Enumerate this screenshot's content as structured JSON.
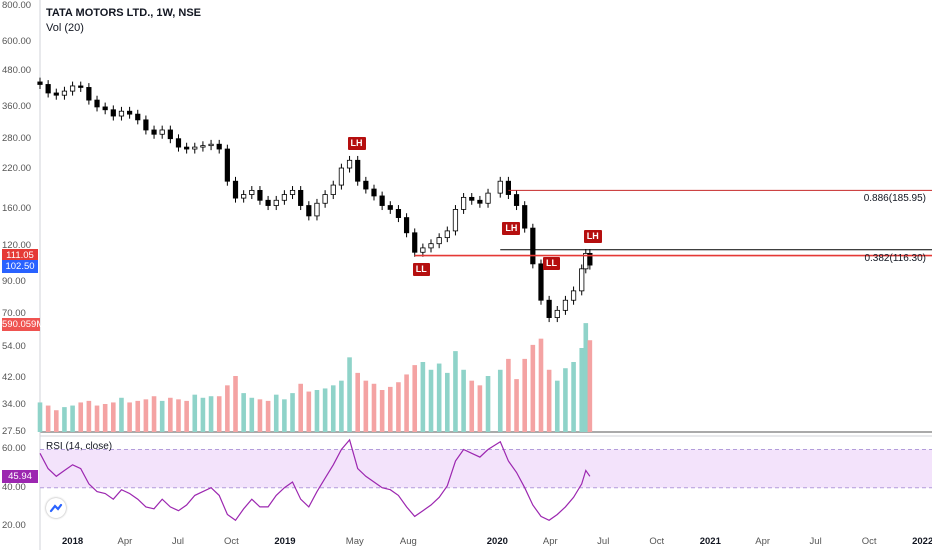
{
  "header": {
    "symbol_title": "TATA MOTORS LTD., 1W, NSE",
    "volume_indicator": "Vol (20)"
  },
  "rsi_panel": {
    "label": "RSI (14, close)",
    "value_badge": "45.94",
    "ticks": [
      "60.00",
      "40.00",
      "20.00"
    ]
  },
  "price_badges": {
    "bid": "111.05",
    "last": "102.50",
    "volume": "590.059M"
  },
  "colors": {
    "up": "#26a69a",
    "down": "#000000",
    "vol_up": "#8fd3c9",
    "vol_down": "#f4a3a3",
    "rsi_line": "#9c27b0",
    "rsi_band": "#f3e3fb",
    "level_red": "#c62828",
    "marker": "#b50f0f"
  },
  "markers": [
    {
      "label": "LH",
      "date": "2019-04-22"
    },
    {
      "label": "LL",
      "date": "2019-08-12"
    },
    {
      "label": "LH",
      "date": "2020-01-13"
    },
    {
      "label": "LL",
      "date": "2020-03-23"
    },
    {
      "label": "LH",
      "date": "2020-06-01"
    }
  ],
  "fib_levels": [
    {
      "label": "0.886(185.95)",
      "value": 185.95
    },
    {
      "label": "0.382(116.30)",
      "value": 116.3
    }
  ],
  "chart_data": {
    "type": "candlestick",
    "title": "TATA MOTORS LTD., 1W, NSE",
    "price_scale": "log",
    "price_ticks": [
      "800.00",
      "600.00",
      "480.00",
      "360.00",
      "280.00",
      "220.00",
      "160.00",
      "120.00",
      "90.00",
      "70.00",
      "54.00",
      "42.00",
      "34.00",
      "27.50"
    ],
    "x_ticks": [
      "2018",
      "Apr",
      "Jul",
      "Oct",
      "2019",
      "May",
      "Aug",
      "2020",
      "Apr",
      "Jul",
      "Oct",
      "2021",
      "Apr",
      "Jul",
      "Oct",
      "2022"
    ],
    "x_ticks_bold": [
      "2018",
      "2019",
      "2020",
      "2021",
      "2022"
    ],
    "x_range": [
      "2017-11-06",
      "2022-01-17"
    ],
    "y_range": [
      27.5,
      800
    ],
    "weekly_close": [
      [
        "2017-11-06",
        430
      ],
      [
        "2017-11-20",
        402
      ],
      [
        "2017-12-04",
        395
      ],
      [
        "2017-12-18",
        408
      ],
      [
        "2018-01-01",
        425
      ],
      [
        "2018-01-15",
        420
      ],
      [
        "2018-01-29",
        380
      ],
      [
        "2018-02-12",
        360
      ],
      [
        "2018-02-26",
        352
      ],
      [
        "2018-03-12",
        335
      ],
      [
        "2018-03-26",
        348
      ],
      [
        "2018-04-09",
        340
      ],
      [
        "2018-04-23",
        325
      ],
      [
        "2018-05-07",
        300
      ],
      [
        "2018-05-21",
        290
      ],
      [
        "2018-06-04",
        300
      ],
      [
        "2018-06-18",
        280
      ],
      [
        "2018-07-02",
        262
      ],
      [
        "2018-07-16",
        258
      ],
      [
        "2018-07-30",
        262
      ],
      [
        "2018-08-13",
        265
      ],
      [
        "2018-08-27",
        268
      ],
      [
        "2018-09-10",
        258
      ],
      [
        "2018-09-24",
        200
      ],
      [
        "2018-10-08",
        175
      ],
      [
        "2018-10-22",
        180
      ],
      [
        "2018-11-05",
        186
      ],
      [
        "2018-11-19",
        172
      ],
      [
        "2018-12-03",
        165
      ],
      [
        "2018-12-17",
        172
      ],
      [
        "2018-12-31",
        180
      ],
      [
        "2019-01-14",
        186
      ],
      [
        "2019-01-28",
        165
      ],
      [
        "2019-02-11",
        152
      ],
      [
        "2019-02-25",
        168
      ],
      [
        "2019-03-11",
        180
      ],
      [
        "2019-03-25",
        194
      ],
      [
        "2019-04-08",
        222
      ],
      [
        "2019-04-22",
        236
      ],
      [
        "2019-05-06",
        200
      ],
      [
        "2019-05-20",
        188
      ],
      [
        "2019-06-03",
        178
      ],
      [
        "2019-06-17",
        165
      ],
      [
        "2019-07-01",
        160
      ],
      [
        "2019-07-15",
        150
      ],
      [
        "2019-07-29",
        133
      ],
      [
        "2019-08-12",
        114
      ],
      [
        "2019-08-26",
        118
      ],
      [
        "2019-09-09",
        122
      ],
      [
        "2019-09-23",
        128
      ],
      [
        "2019-10-07",
        135
      ],
      [
        "2019-10-21",
        160
      ],
      [
        "2019-11-04",
        176
      ],
      [
        "2019-11-18",
        172
      ],
      [
        "2019-12-02",
        168
      ],
      [
        "2019-12-16",
        182
      ],
      [
        "2020-01-06",
        200
      ],
      [
        "2020-01-20",
        180
      ],
      [
        "2020-02-03",
        165
      ],
      [
        "2020-02-17",
        138
      ],
      [
        "2020-03-02",
        104
      ],
      [
        "2020-03-16",
        78
      ],
      [
        "2020-03-30",
        68
      ],
      [
        "2020-04-13",
        72
      ],
      [
        "2020-04-27",
        78
      ],
      [
        "2020-05-11",
        84
      ],
      [
        "2020-05-25",
        100
      ],
      [
        "2020-06-01",
        113
      ],
      [
        "2020-06-08",
        103
      ]
    ],
    "weekly_volume_million": [
      [
        "2017-11-06",
        190
      ],
      [
        "2017-11-20",
        170
      ],
      [
        "2017-12-04",
        140
      ],
      [
        "2017-12-18",
        160
      ],
      [
        "2018-01-01",
        170
      ],
      [
        "2018-01-15",
        190
      ],
      [
        "2018-01-29",
        200
      ],
      [
        "2018-02-12",
        170
      ],
      [
        "2018-02-26",
        180
      ],
      [
        "2018-03-12",
        190
      ],
      [
        "2018-03-26",
        220
      ],
      [
        "2018-04-09",
        190
      ],
      [
        "2018-04-23",
        200
      ],
      [
        "2018-05-07",
        210
      ],
      [
        "2018-05-21",
        230
      ],
      [
        "2018-06-04",
        200
      ],
      [
        "2018-06-18",
        220
      ],
      [
        "2018-07-02",
        210
      ],
      [
        "2018-07-16",
        200
      ],
      [
        "2018-07-30",
        240
      ],
      [
        "2018-08-13",
        220
      ],
      [
        "2018-08-27",
        230
      ],
      [
        "2018-09-10",
        230
      ],
      [
        "2018-09-24",
        300
      ],
      [
        "2018-10-08",
        360
      ],
      [
        "2018-10-22",
        250
      ],
      [
        "2018-11-05",
        220
      ],
      [
        "2018-11-19",
        210
      ],
      [
        "2018-12-03",
        200
      ],
      [
        "2018-12-17",
        240
      ],
      [
        "2018-12-31",
        210
      ],
      [
        "2019-01-14",
        250
      ],
      [
        "2019-01-28",
        310
      ],
      [
        "2019-02-11",
        260
      ],
      [
        "2019-02-25",
        270
      ],
      [
        "2019-03-11",
        280
      ],
      [
        "2019-03-25",
        300
      ],
      [
        "2019-04-08",
        330
      ],
      [
        "2019-04-22",
        480
      ],
      [
        "2019-05-06",
        380
      ],
      [
        "2019-05-20",
        330
      ],
      [
        "2019-06-03",
        310
      ],
      [
        "2019-06-17",
        270
      ],
      [
        "2019-07-01",
        290
      ],
      [
        "2019-07-15",
        320
      ],
      [
        "2019-07-29",
        370
      ],
      [
        "2019-08-12",
        430
      ],
      [
        "2019-08-26",
        450
      ],
      [
        "2019-09-09",
        400
      ],
      [
        "2019-09-23",
        440
      ],
      [
        "2019-10-07",
        380
      ],
      [
        "2019-10-21",
        520
      ],
      [
        "2019-11-04",
        400
      ],
      [
        "2019-11-18",
        330
      ],
      [
        "2019-12-02",
        300
      ],
      [
        "2019-12-16",
        360
      ],
      [
        "2020-01-06",
        400
      ],
      [
        "2020-01-20",
        470
      ],
      [
        "2020-02-03",
        340
      ],
      [
        "2020-02-17",
        470
      ],
      [
        "2020-03-02",
        560
      ],
      [
        "2020-03-16",
        600
      ],
      [
        "2020-03-30",
        400
      ],
      [
        "2020-04-13",
        330
      ],
      [
        "2020-04-27",
        410
      ],
      [
        "2020-05-11",
        450
      ],
      [
        "2020-05-25",
        540
      ],
      [
        "2020-06-01",
        700
      ],
      [
        "2020-06-08",
        590
      ]
    ],
    "rsi_range": [
      20,
      66
    ],
    "rsi_ticks": [
      60,
      40,
      20
    ],
    "rsi_overbought": 60,
    "rsi_oversold": 40,
    "rsi_series": [
      [
        "2017-11-06",
        58
      ],
      [
        "2017-11-20",
        50
      ],
      [
        "2017-12-04",
        46
      ],
      [
        "2017-12-18",
        49
      ],
      [
        "2018-01-01",
        52
      ],
      [
        "2018-01-15",
        50
      ],
      [
        "2018-01-29",
        42
      ],
      [
        "2018-02-12",
        38
      ],
      [
        "2018-02-26",
        37
      ],
      [
        "2018-03-12",
        34
      ],
      [
        "2018-03-26",
        39
      ],
      [
        "2018-04-09",
        37
      ],
      [
        "2018-04-23",
        34
      ],
      [
        "2018-05-07",
        30
      ],
      [
        "2018-05-21",
        29
      ],
      [
        "2018-06-04",
        34
      ],
      [
        "2018-06-18",
        30
      ],
      [
        "2018-07-02",
        28
      ],
      [
        "2018-07-16",
        31
      ],
      [
        "2018-07-30",
        36
      ],
      [
        "2018-08-13",
        38
      ],
      [
        "2018-08-27",
        40
      ],
      [
        "2018-09-10",
        36
      ],
      [
        "2018-09-24",
        26
      ],
      [
        "2018-10-08",
        23
      ],
      [
        "2018-10-22",
        29
      ],
      [
        "2018-11-05",
        34
      ],
      [
        "2018-11-19",
        30
      ],
      [
        "2018-12-03",
        30
      ],
      [
        "2018-12-17",
        36
      ],
      [
        "2018-12-31",
        40
      ],
      [
        "2019-01-14",
        43
      ],
      [
        "2019-01-28",
        34
      ],
      [
        "2019-02-11",
        30
      ],
      [
        "2019-02-25",
        38
      ],
      [
        "2019-03-11",
        45
      ],
      [
        "2019-03-25",
        52
      ],
      [
        "2019-04-08",
        60
      ],
      [
        "2019-04-22",
        65
      ],
      [
        "2019-05-06",
        50
      ],
      [
        "2019-05-20",
        46
      ],
      [
        "2019-06-03",
        43
      ],
      [
        "2019-06-17",
        40
      ],
      [
        "2019-07-01",
        39
      ],
      [
        "2019-07-15",
        36
      ],
      [
        "2019-07-29",
        30
      ],
      [
        "2019-08-12",
        25
      ],
      [
        "2019-08-26",
        28
      ],
      [
        "2019-09-09",
        31
      ],
      [
        "2019-09-23",
        35
      ],
      [
        "2019-10-07",
        41
      ],
      [
        "2019-10-21",
        54
      ],
      [
        "2019-11-04",
        60
      ],
      [
        "2019-11-18",
        58
      ],
      [
        "2019-12-02",
        56
      ],
      [
        "2019-12-16",
        60
      ],
      [
        "2020-01-06",
        64
      ],
      [
        "2020-01-20",
        54
      ],
      [
        "2020-02-03",
        48
      ],
      [
        "2020-02-17",
        40
      ],
      [
        "2020-03-02",
        31
      ],
      [
        "2020-03-16",
        25
      ],
      [
        "2020-03-30",
        23
      ],
      [
        "2020-04-13",
        26
      ],
      [
        "2020-04-27",
        30
      ],
      [
        "2020-05-11",
        35
      ],
      [
        "2020-05-25",
        42
      ],
      [
        "2020-06-01",
        49
      ],
      [
        "2020-06-08",
        46
      ]
    ]
  }
}
